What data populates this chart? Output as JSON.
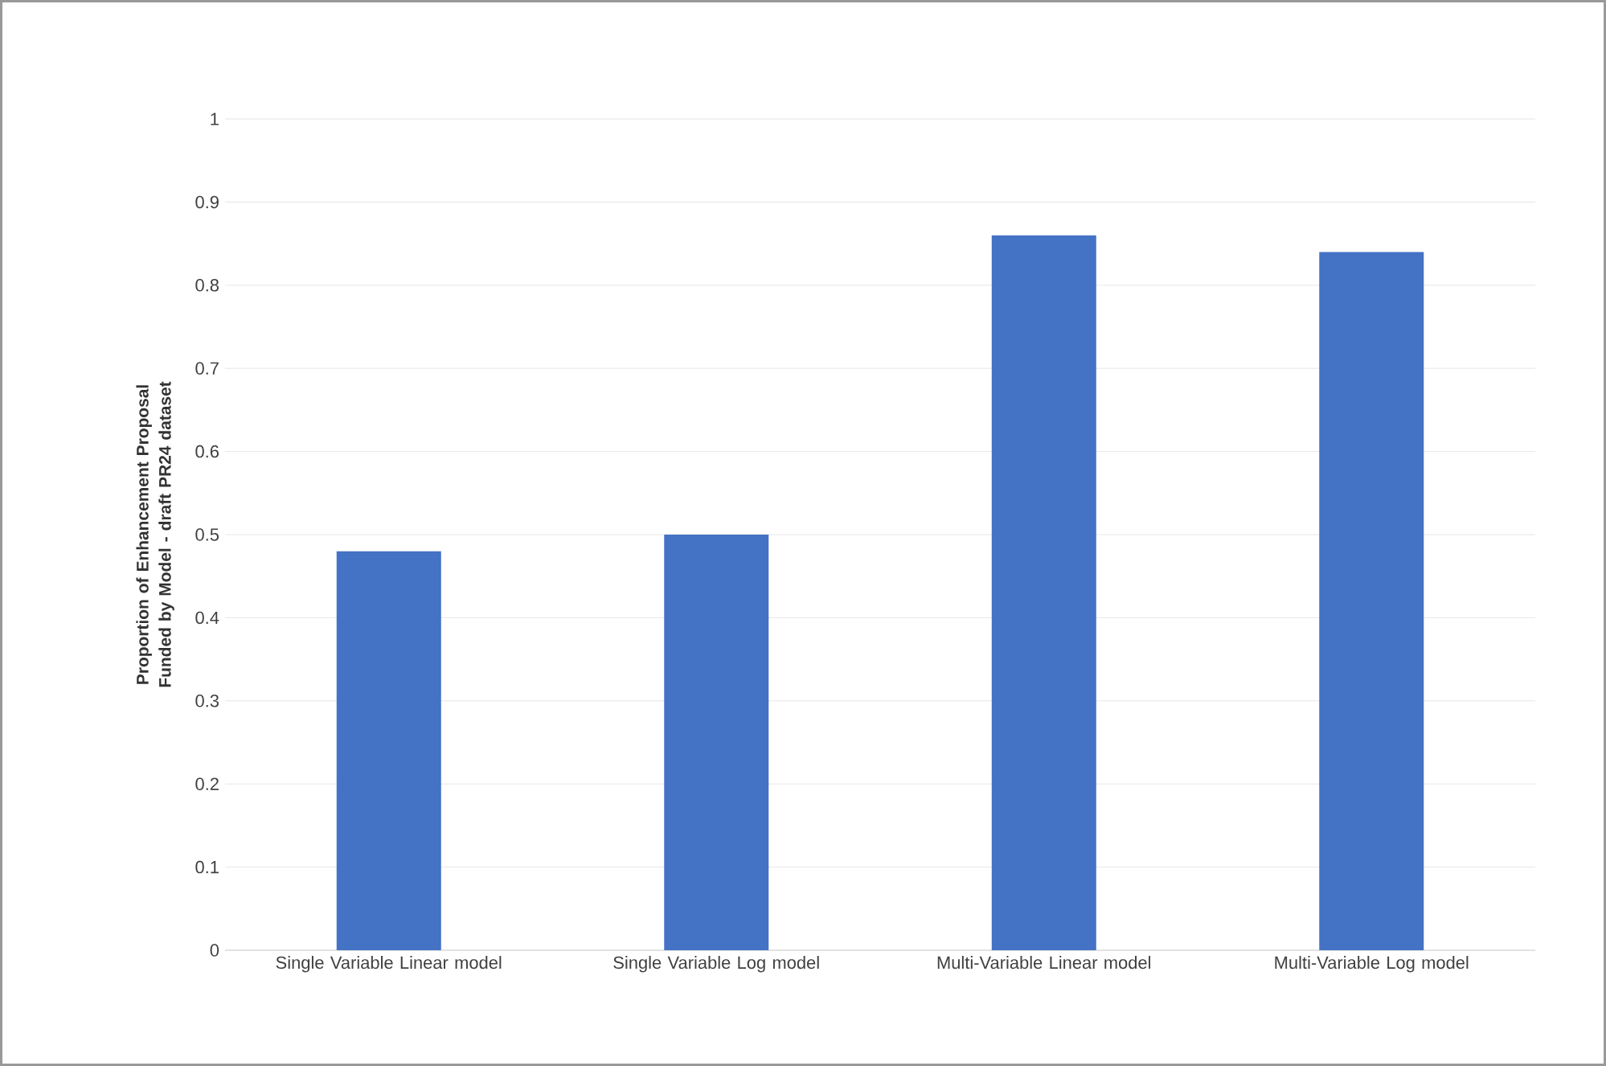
{
  "chart_data": {
    "type": "bar",
    "ylabel": "Proportion of Enhancement Proposal Funded by Model - draft PR24 dataset",
    "categories": [
      "Single Variable Linear model",
      "Single Variable Log model",
      "Multi-Variable Linear model",
      "Multi-Variable Log model"
    ],
    "values": [
      0.48,
      0.5,
      0.86,
      0.84
    ],
    "color": "#4472c4",
    "ylim": [
      0,
      1
    ],
    "yticks": [
      0,
      0.1,
      0.2,
      0.3,
      0.4,
      0.5,
      0.6,
      0.7,
      0.8,
      0.9,
      1
    ],
    "grid": "y"
  }
}
